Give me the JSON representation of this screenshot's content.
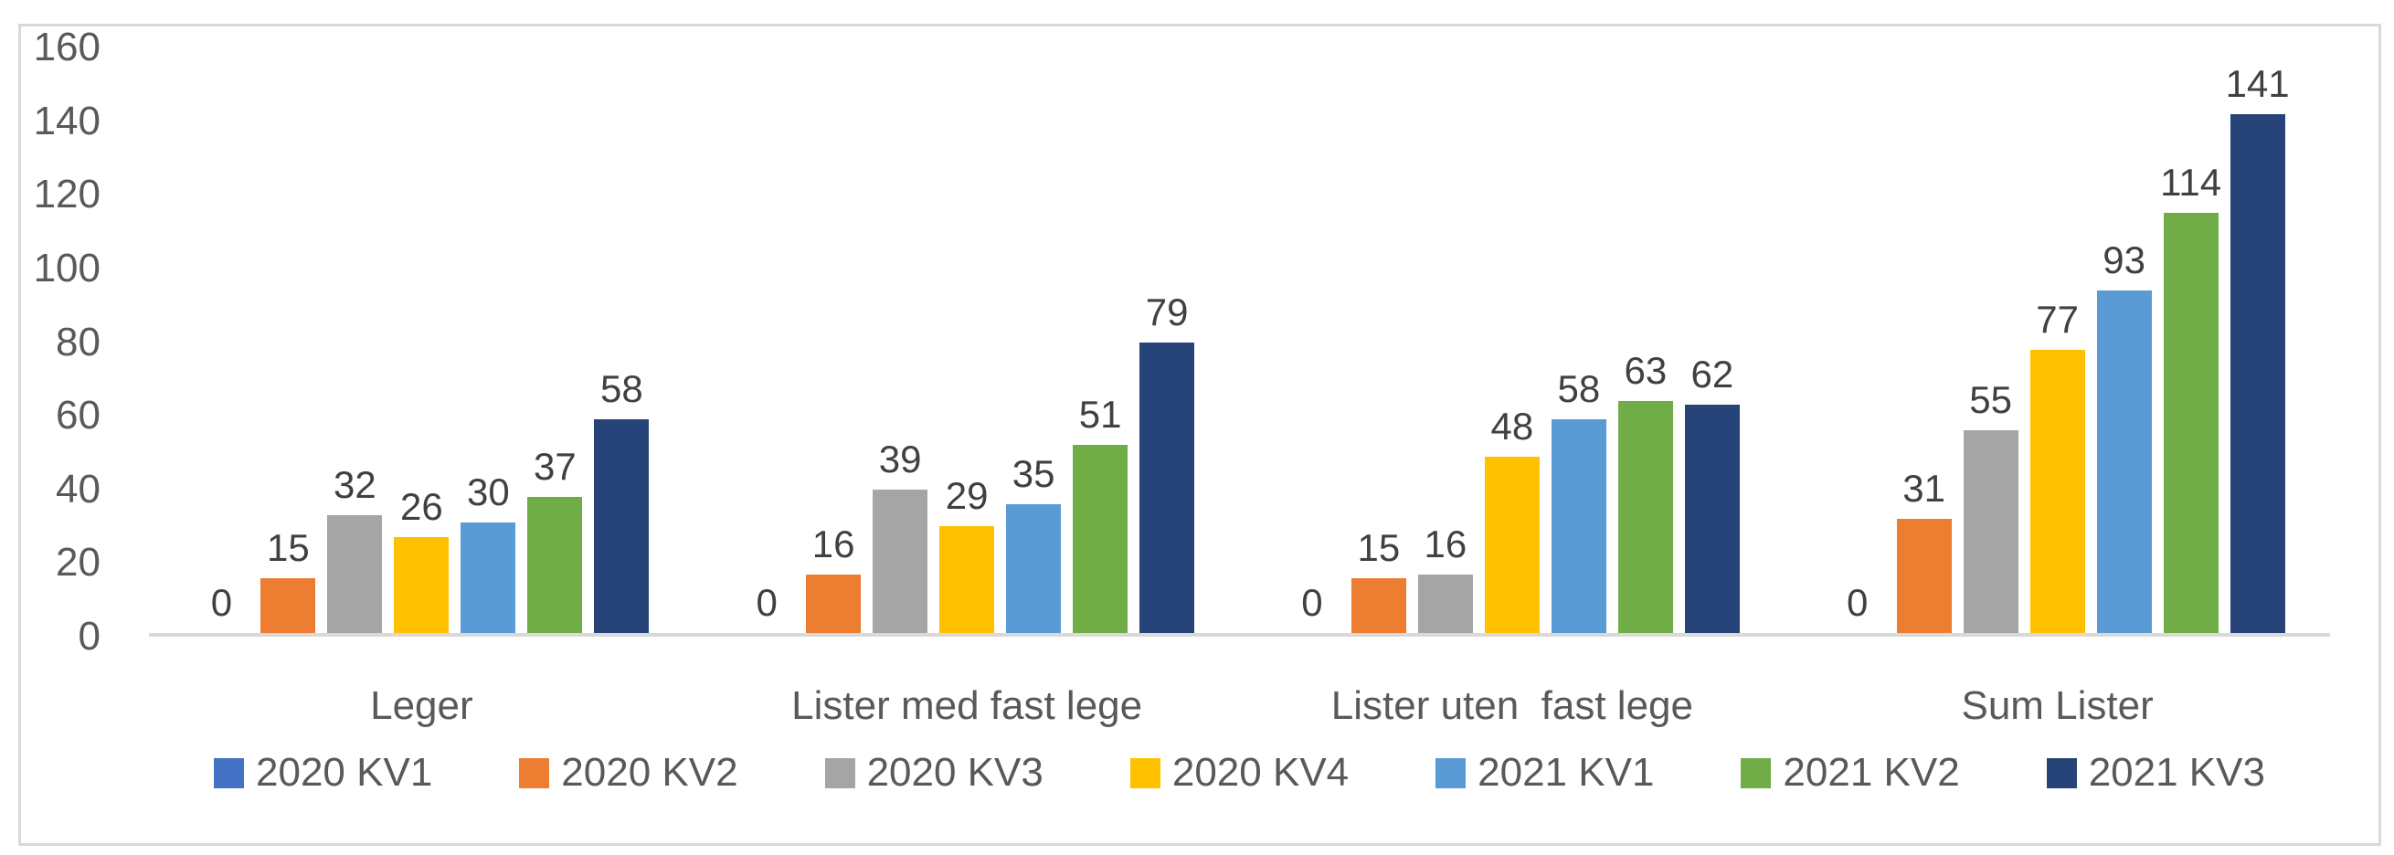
{
  "chart_data": {
    "type": "bar",
    "title": "",
    "xlabel": "",
    "ylabel": "",
    "ylim": [
      0,
      160
    ],
    "yticks": [
      "0",
      "20",
      "40",
      "60",
      "80",
      "100",
      "120",
      "140",
      "160"
    ],
    "grid": false,
    "data_labels": true,
    "legend_position": "bottom",
    "categories": [
      "Leger",
      "Lister med fast lege",
      "Lister uten  fast lege",
      "Sum Lister"
    ],
    "series": [
      {
        "name": "2020 KV1",
        "color": "#4472C4",
        "values": [
          0,
          0,
          0,
          0
        ]
      },
      {
        "name": "2020 KV2",
        "color": "#ED7D31",
        "values": [
          15,
          16,
          15,
          31
        ]
      },
      {
        "name": "2020 KV3",
        "color": "#A5A5A5",
        "values": [
          32,
          39,
          16,
          55
        ]
      },
      {
        "name": "2020 KV4",
        "color": "#FFC000",
        "values": [
          26,
          29,
          48,
          77
        ]
      },
      {
        "name": "2021 KV1",
        "color": "#5B9BD5",
        "values": [
          30,
          35,
          58,
          93
        ]
      },
      {
        "name": "2021 KV2",
        "color": "#70AD47",
        "values": [
          37,
          51,
          63,
          114
        ]
      },
      {
        "name": "2021 KV3",
        "color": "#264478",
        "values": [
          58,
          79,
          62,
          141
        ]
      }
    ],
    "colors": {
      "tick_text": "#595959",
      "data_label_text": "#404040",
      "axis_line": "#D9D9D9",
      "frame_border": "#D9D9D9",
      "background": "#FFFFFF"
    }
  }
}
